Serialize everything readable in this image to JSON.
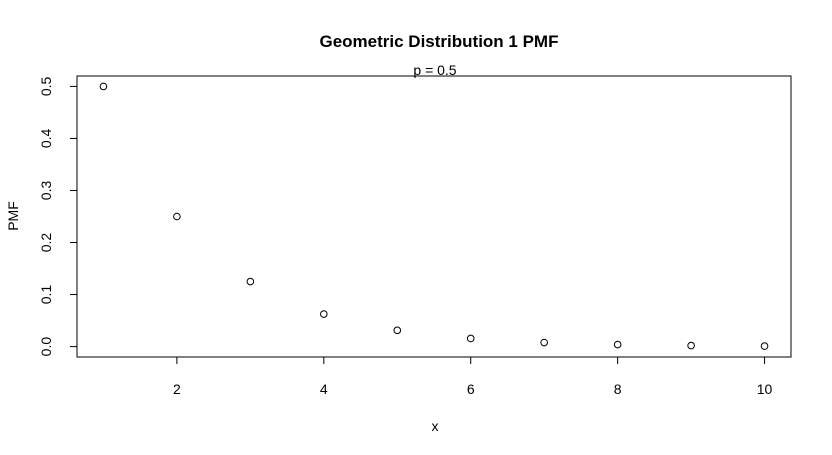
{
  "chart_data": {
    "type": "scatter",
    "title": "Geometric Distribution 1 PMF",
    "subtitle": "p = 0.5",
    "xlabel": "x",
    "ylabel": "PMF",
    "xlim": [
      0.64,
      10.36
    ],
    "ylim": [
      -0.02,
      0.52
    ],
    "xticks": [
      2,
      4,
      6,
      8,
      10
    ],
    "yticks": [
      0.0,
      0.1,
      0.2,
      0.3,
      0.4,
      0.5
    ],
    "ytick_labels": [
      "0.0",
      "0.1",
      "0.2",
      "0.3",
      "0.4",
      "0.5"
    ],
    "grid": false,
    "series": [
      {
        "x": [
          1,
          2,
          3,
          4,
          5,
          6,
          7,
          8,
          9,
          10
        ],
        "y": [
          0.5,
          0.25,
          0.125,
          0.0625,
          0.03125,
          0.015625,
          0.0078125,
          0.00390625,
          0.001953125,
          0.0009765625
        ],
        "marker": "open-circle",
        "color": "#000000"
      }
    ]
  }
}
